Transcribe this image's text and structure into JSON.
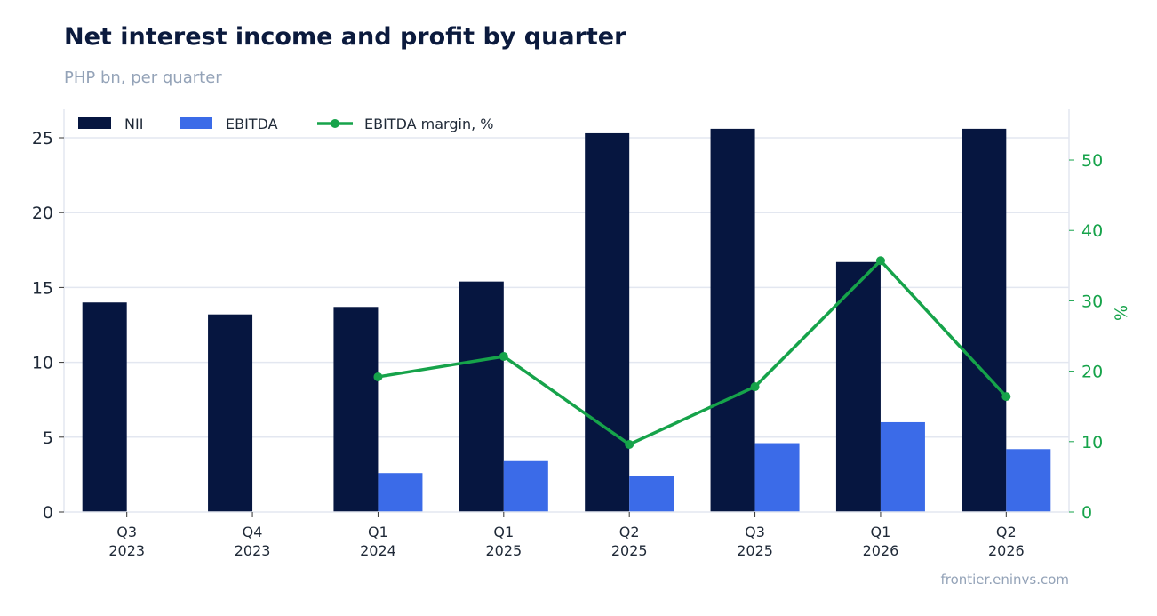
{
  "header": {
    "title": "Net interest income and profit by quarter",
    "subtitle": "PHP bn, per quarter"
  },
  "footer": {
    "source": "frontier.eninvs.com"
  },
  "chart_data": {
    "type": "bar",
    "categories": [
      {
        "q": "Q3",
        "year": "2023"
      },
      {
        "q": "Q4",
        "year": "2023"
      },
      {
        "q": "Q1",
        "year": "2024"
      },
      {
        "q": "Q1",
        "year": "2025"
      },
      {
        "q": "Q2",
        "year": "2025"
      },
      {
        "q": "Q3",
        "year": "2025"
      },
      {
        "q": "Q1",
        "year": "2026"
      },
      {
        "q": "Q2",
        "year": "2026"
      }
    ],
    "series": [
      {
        "name": "NII",
        "type": "bar",
        "axis": "left",
        "color": "#061640",
        "values": [
          14.0,
          13.2,
          13.7,
          15.4,
          25.3,
          25.6,
          16.7,
          25.6
        ]
      },
      {
        "name": "EBITDA",
        "type": "bar",
        "axis": "left",
        "color": "#3b6be8",
        "values": [
          null,
          null,
          2.6,
          3.4,
          2.4,
          4.6,
          6.0,
          4.2
        ]
      },
      {
        "name": "EBITDA margin, %",
        "type": "line",
        "axis": "right",
        "color": "#16a34a",
        "values": [
          null,
          null,
          19.2,
          22.1,
          9.6,
          17.8,
          35.7,
          16.4
        ]
      }
    ],
    "y_left": {
      "ylim": [
        0,
        26.9
      ],
      "ticks": [
        0,
        5,
        10,
        15,
        20,
        25
      ]
    },
    "y_right": {
      "label": "%",
      "ylim": [
        0,
        57.2
      ],
      "ticks": [
        0,
        10,
        20,
        30,
        40,
        50
      ]
    },
    "grid": true,
    "legend": "top-left"
  }
}
